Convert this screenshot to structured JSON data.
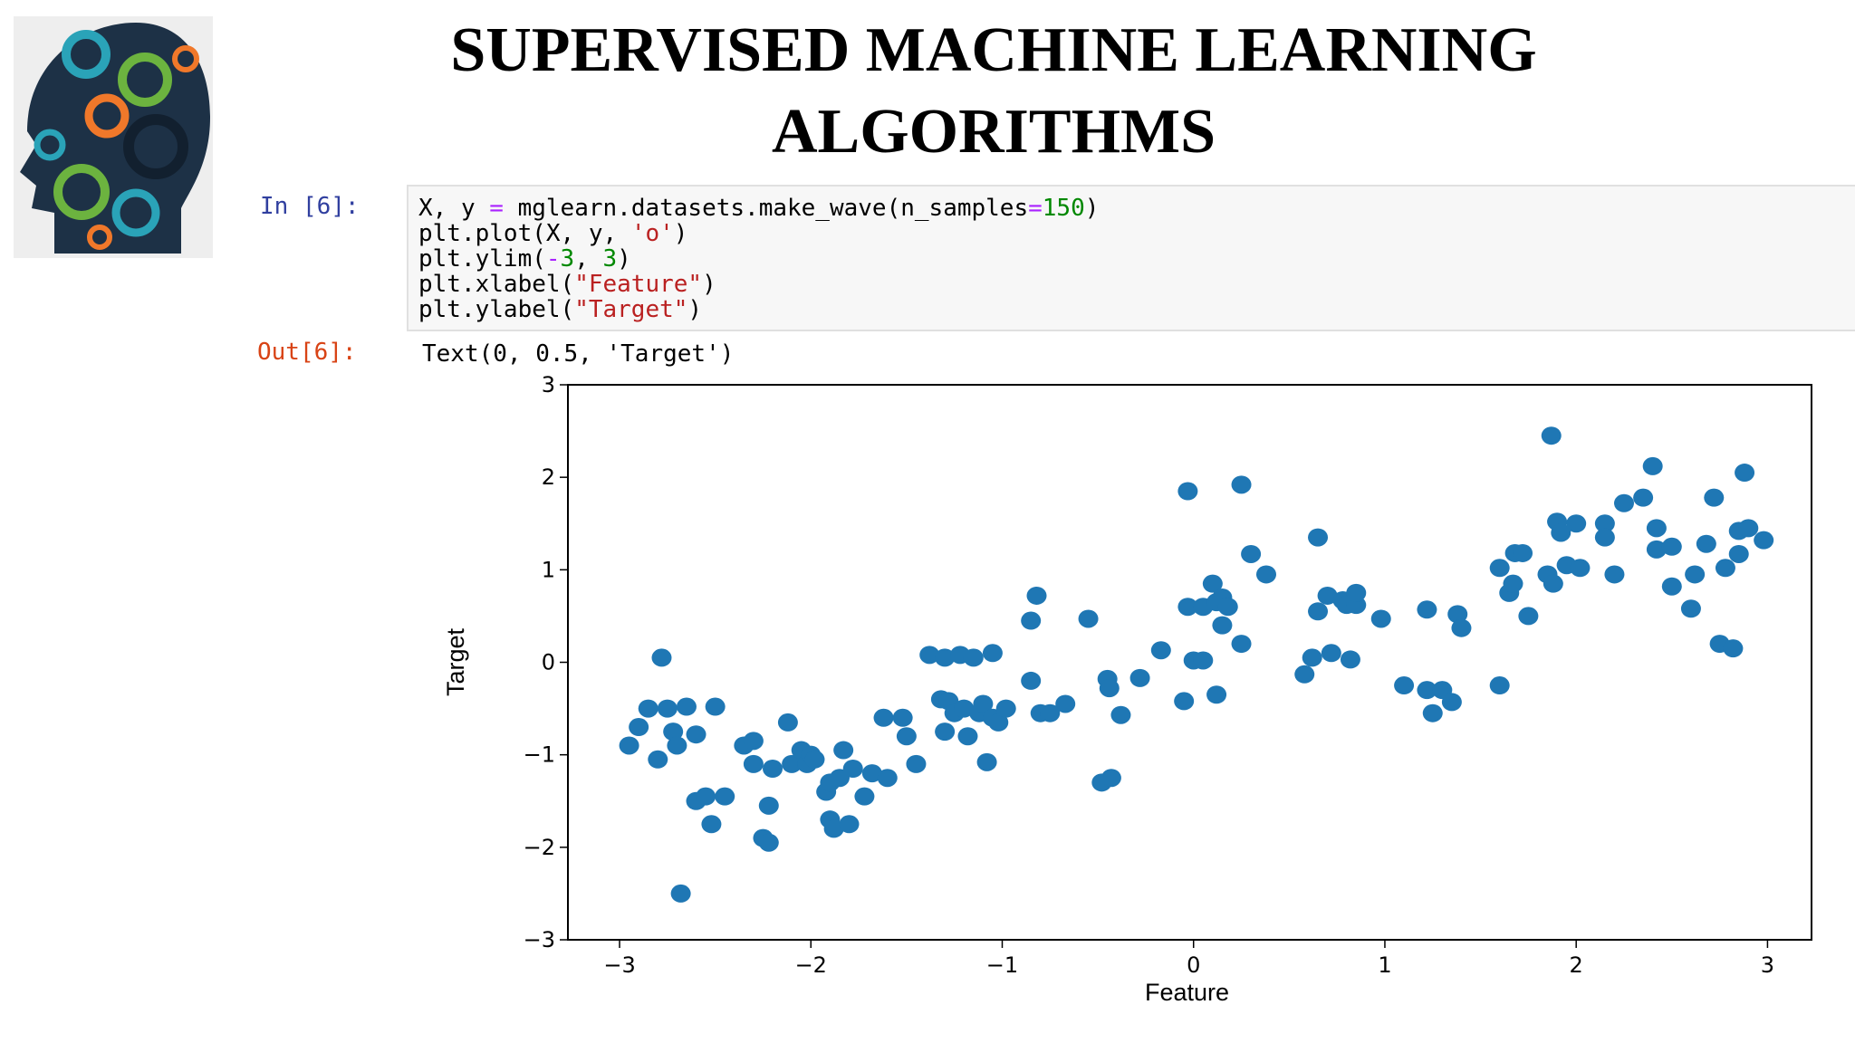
{
  "title": [
    "SUPERVISED MACHINE LEARNING",
    "ALGORITHMS"
  ],
  "cell": {
    "in_prompt": "In [6]:",
    "out_prompt": "Out[6]:",
    "output": "Text(0, 0.5, 'Target')",
    "code": [
      [
        {
          "text": "X, y ",
          "color": "#000000"
        },
        {
          "text": "=",
          "color": "#aa22ff"
        },
        {
          "text": " mglearn.datasets.make_wave(n_samples",
          "color": "#000000"
        },
        {
          "text": "=",
          "color": "#aa22ff"
        },
        {
          "text": "150",
          "color": "#008800"
        },
        {
          "text": ")",
          "color": "#000000"
        }
      ],
      [
        {
          "text": "plt.plot(X, y, ",
          "color": "#000000"
        },
        {
          "text": "'o'",
          "color": "#ba2121"
        },
        {
          "text": ")",
          "color": "#000000"
        }
      ],
      [
        {
          "text": "plt.ylim(",
          "color": "#000000"
        },
        {
          "text": "-",
          "color": "#aa22ff"
        },
        {
          "text": "3",
          "color": "#008800"
        },
        {
          "text": ", ",
          "color": "#000000"
        },
        {
          "text": "3",
          "color": "#008800"
        },
        {
          "text": ")",
          "color": "#000000"
        }
      ],
      [
        {
          "text": "plt.xlabel(",
          "color": "#000000"
        },
        {
          "text": "\"Feature\"",
          "color": "#ba2121"
        },
        {
          "text": ")",
          "color": "#000000"
        }
      ],
      [
        {
          "text": "plt.ylabel(",
          "color": "#000000"
        },
        {
          "text": "\"Target\"",
          "color": "#ba2121"
        },
        {
          "text": ")",
          "color": "#000000"
        }
      ]
    ]
  },
  "chart_data": {
    "type": "scatter",
    "x_label": "Feature",
    "y_label": "Target",
    "color": "#1f77b4",
    "xlim": [
      -3.27,
      3.23
    ],
    "ylim": [
      -3,
      3
    ],
    "xticks": [
      {
        "value": -3,
        "label": "−3"
      },
      {
        "value": -2,
        "label": "−2"
      },
      {
        "value": -1,
        "label": "−1"
      },
      0,
      1,
      2,
      3
    ],
    "yticks": [
      {
        "value": -3,
        "label": "−3"
      },
      {
        "value": -2,
        "label": "−2"
      },
      {
        "value": -1,
        "label": "−1"
      },
      0,
      1,
      2,
      3
    ],
    "x": [
      -2.95,
      -2.9,
      -2.85,
      -2.8,
      -2.78,
      -2.75,
      -2.72,
      -2.7,
      -2.68,
      -2.65,
      -2.6,
      -2.6,
      -2.55,
      -2.52,
      -2.5,
      -2.45,
      -2.35,
      -2.3,
      -2.3,
      -2.25,
      -2.22,
      -2.22,
      -2.2,
      -2.12,
      -2.1,
      -2.05,
      -2.02,
      -2.0,
      -1.98,
      -1.92,
      -1.9,
      -1.9,
      -1.88,
      -1.85,
      -1.83,
      -1.8,
      -1.78,
      -1.72,
      -1.68,
      -1.62,
      -1.6,
      -1.52,
      -1.5,
      -1.45,
      -1.38,
      -1.32,
      -1.3,
      -1.3,
      -1.28,
      -1.25,
      -1.22,
      -1.2,
      -1.18,
      -1.15,
      -1.12,
      -1.1,
      -1.08,
      -1.05,
      -1.05,
      -1.02,
      -0.98,
      -0.85,
      -0.82,
      -0.85,
      -0.8,
      -0.75,
      -0.67,
      -0.55,
      -0.48,
      -0.43,
      -0.45,
      -0.44,
      -0.38,
      -0.28,
      -0.17,
      -0.03,
      -0.03,
      -0.05,
      0.0,
      0.05,
      0.05,
      0.1,
      0.12,
      0.12,
      0.15,
      0.15,
      0.18,
      0.25,
      0.25,
      0.3,
      0.38,
      0.58,
      0.62,
      0.65,
      0.65,
      0.7,
      0.72,
      0.78,
      0.8,
      0.82,
      0.85,
      0.85,
      0.98,
      1.1,
      1.22,
      1.22,
      1.25,
      1.3,
      1.35,
      1.38,
      1.4,
      1.6,
      1.6,
      1.65,
      1.67,
      1.68,
      1.72,
      1.75,
      1.85,
      1.87,
      1.88,
      1.9,
      1.92,
      1.95,
      2.0,
      2.02,
      2.15,
      2.15,
      2.2,
      2.25,
      2.35,
      2.4,
      2.42,
      2.42,
      2.5,
      2.5,
      2.6,
      2.62,
      2.68,
      2.72,
      2.75,
      2.78,
      2.82,
      2.85,
      2.85,
      2.88,
      2.9,
      2.98
    ],
    "values": [
      -0.9,
      -0.7,
      -0.5,
      -1.05,
      0.05,
      -0.5,
      -0.75,
      -0.9,
      -2.5,
      -0.48,
      -0.78,
      -1.5,
      -1.45,
      -1.75,
      -0.48,
      -1.45,
      -0.9,
      -0.85,
      -1.1,
      -1.9,
      -1.95,
      -1.55,
      -1.15,
      -0.65,
      -1.1,
      -0.95,
      -1.1,
      -1.0,
      -1.05,
      -1.4,
      -1.3,
      -1.7,
      -1.8,
      -1.25,
      -0.95,
      -1.75,
      -1.15,
      -1.45,
      -1.2,
      -0.6,
      -1.25,
      -0.6,
      -0.8,
      -1.1,
      0.08,
      -0.4,
      0.05,
      -0.75,
      -0.42,
      -0.55,
      0.08,
      -0.5,
      -0.8,
      0.05,
      -0.55,
      -0.45,
      -1.08,
      0.1,
      -0.6,
      -0.65,
      -0.5,
      0.45,
      0.72,
      -0.2,
      -0.55,
      -0.55,
      -0.45,
      0.47,
      -1.3,
      -1.25,
      -0.18,
      -0.28,
      -0.57,
      -0.17,
      0.13,
      1.85,
      0.6,
      -0.42,
      0.02,
      0.02,
      0.6,
      0.85,
      0.65,
      -0.35,
      0.7,
      0.4,
      0.6,
      1.92,
      0.2,
      1.17,
      0.95,
      -0.13,
      0.05,
      1.35,
      0.55,
      0.72,
      0.1,
      0.67,
      0.62,
      0.03,
      0.62,
      0.75,
      0.47,
      -0.25,
      -0.3,
      0.57,
      -0.55,
      -0.3,
      -0.43,
      0.52,
      0.37,
      -0.25,
      1.02,
      0.75,
      0.85,
      1.18,
      1.18,
      0.5,
      0.95,
      2.45,
      0.85,
      1.52,
      1.4,
      1.05,
      1.5,
      1.02,
      1.5,
      1.35,
      0.95,
      1.72,
      1.78,
      2.12,
      1.22,
      1.45,
      0.82,
      1.25,
      0.58,
      0.95,
      1.28,
      1.78,
      0.2,
      1.02,
      0.15,
      1.17,
      1.42,
      2.05,
      1.45,
      1.32
    ]
  }
}
